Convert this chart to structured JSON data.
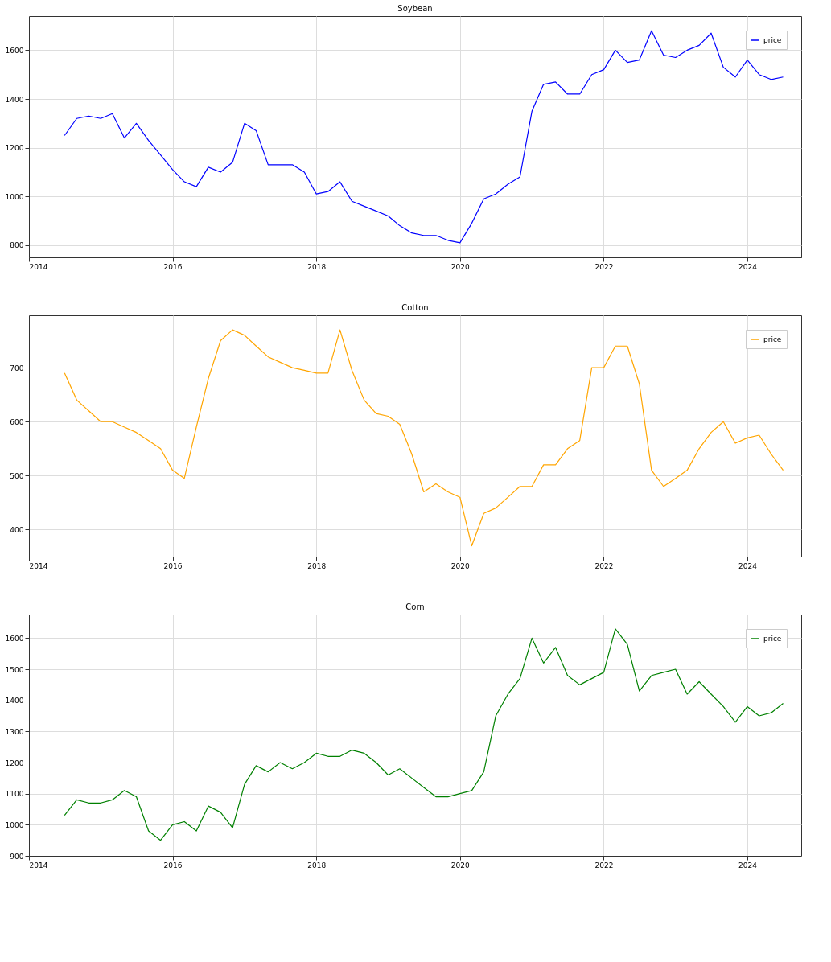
{
  "chart_data": [
    {
      "type": "line",
      "title": "Soybean",
      "x": [
        "2014-07",
        "2014-09",
        "2014-11",
        "2015-01",
        "2015-03",
        "2015-05",
        "2015-07",
        "2015-09",
        "2015-11",
        "2016-01",
        "2016-03",
        "2016-05",
        "2016-07",
        "2016-09",
        "2016-11",
        "2017-01",
        "2017-03",
        "2017-05",
        "2017-07",
        "2017-09",
        "2017-11",
        "2018-01",
        "2018-03",
        "2018-05",
        "2018-07",
        "2018-09",
        "2018-11",
        "2019-01",
        "2019-03",
        "2019-05",
        "2019-07",
        "2019-09",
        "2019-11",
        "2020-01",
        "2020-03",
        "2020-05",
        "2020-07",
        "2020-09",
        "2020-11",
        "2021-01",
        "2021-03",
        "2021-05",
        "2021-07",
        "2021-09",
        "2021-11",
        "2022-01",
        "2022-03",
        "2022-05",
        "2022-07",
        "2022-09",
        "2022-11",
        "2023-01",
        "2023-03",
        "2023-05",
        "2023-07",
        "2023-09",
        "2023-11",
        "2024-01",
        "2024-03",
        "2024-05",
        "2024-07"
      ],
      "series": [
        {
          "name": "price",
          "color": "#0000ff",
          "values": [
            1250,
            1320,
            1330,
            1320,
            1340,
            1240,
            1300,
            1230,
            1170,
            1110,
            1060,
            1040,
            1120,
            1100,
            1140,
            1300,
            1270,
            1130,
            1130,
            1130,
            1100,
            1010,
            1020,
            1060,
            980,
            960,
            940,
            920,
            880,
            850,
            840,
            840,
            820,
            810,
            890,
            990,
            1010,
            1050,
            1080,
            1350,
            1460,
            1470,
            1420,
            1420,
            1500,
            1520,
            1600,
            1550,
            1560,
            1680,
            1580,
            1570,
            1600,
            1620,
            1670,
            1530,
            1490,
            1560,
            1500,
            1480,
            1490
          ]
        }
      ],
      "xlim": [
        "2014",
        "2024-10"
      ],
      "xticks": [
        "2014",
        "2016",
        "2018",
        "2020",
        "2022",
        "2024"
      ],
      "ylim": [
        750,
        1740
      ],
      "yticks": [
        800,
        1000,
        1200,
        1400,
        1600
      ],
      "grid": true,
      "legend": "top right",
      "marker": "none",
      "line_style": "solid"
    },
    {
      "type": "line",
      "title": "Cotton",
      "x": [
        "2014-07",
        "2014-09",
        "2014-11",
        "2015-01",
        "2015-03",
        "2015-05",
        "2015-07",
        "2015-09",
        "2015-11",
        "2016-01",
        "2016-03",
        "2016-05",
        "2016-07",
        "2016-09",
        "2016-11",
        "2017-01",
        "2017-03",
        "2017-05",
        "2017-07",
        "2017-09",
        "2017-11",
        "2018-01",
        "2018-03",
        "2018-05",
        "2018-07",
        "2018-09",
        "2018-11",
        "2019-01",
        "2019-03",
        "2019-05",
        "2019-07",
        "2019-09",
        "2019-11",
        "2020-01",
        "2020-03",
        "2020-05",
        "2020-07",
        "2020-09",
        "2020-11",
        "2021-01",
        "2021-03",
        "2021-05",
        "2021-07",
        "2021-09",
        "2021-11",
        "2022-01",
        "2022-03",
        "2022-05",
        "2022-07",
        "2022-09",
        "2022-11",
        "2023-01",
        "2023-03",
        "2023-05",
        "2023-07",
        "2023-09",
        "2023-11",
        "2024-01",
        "2024-03",
        "2024-05",
        "2024-07"
      ],
      "series": [
        {
          "name": "price",
          "color": "#ffa500",
          "values": [
            690,
            640,
            620,
            600,
            600,
            590,
            580,
            565,
            550,
            510,
            495,
            590,
            680,
            750,
            770,
            760,
            740,
            720,
            710,
            700,
            695,
            690,
            690,
            770,
            695,
            640,
            615,
            610,
            595,
            540,
            470,
            485,
            470,
            460,
            370,
            430,
            440,
            460,
            480,
            480,
            520,
            520,
            550,
            565,
            700,
            700,
            740,
            740,
            670,
            510,
            480,
            495,
            510,
            550,
            580,
            600,
            560,
            570,
            575,
            540,
            510
          ]
        }
      ],
      "xlim": [
        "2014",
        "2024-10"
      ],
      "xticks": [
        "2014",
        "2016",
        "2018",
        "2020",
        "2022",
        "2024"
      ],
      "ylim": [
        350,
        797
      ],
      "yticks": [
        400,
        500,
        600,
        700
      ],
      "grid": true,
      "legend": "top right",
      "marker": "none",
      "line_style": "solid"
    },
    {
      "type": "line",
      "title": "Corn",
      "x": [
        "2014-07",
        "2014-09",
        "2014-11",
        "2015-01",
        "2015-03",
        "2015-05",
        "2015-07",
        "2015-09",
        "2015-11",
        "2016-01",
        "2016-03",
        "2016-05",
        "2016-07",
        "2016-09",
        "2016-11",
        "2017-01",
        "2017-03",
        "2017-05",
        "2017-07",
        "2017-09",
        "2017-11",
        "2018-01",
        "2018-03",
        "2018-05",
        "2018-07",
        "2018-09",
        "2018-11",
        "2019-01",
        "2019-03",
        "2019-05",
        "2019-07",
        "2019-09",
        "2019-11",
        "2020-01",
        "2020-03",
        "2020-05",
        "2020-07",
        "2020-09",
        "2020-11",
        "2021-01",
        "2021-03",
        "2021-05",
        "2021-07",
        "2021-09",
        "2021-11",
        "2022-01",
        "2022-03",
        "2022-05",
        "2022-07",
        "2022-09",
        "2022-11",
        "2023-01",
        "2023-03",
        "2023-05",
        "2023-07",
        "2023-09",
        "2023-11",
        "2024-01",
        "2024-03",
        "2024-05",
        "2024-07"
      ],
      "series": [
        {
          "name": "price",
          "color": "#008000",
          "values": [
            1030,
            1080,
            1070,
            1070,
            1080,
            1110,
            1090,
            980,
            950,
            1000,
            1010,
            980,
            1060,
            1040,
            990,
            1130,
            1190,
            1170,
            1200,
            1180,
            1200,
            1230,
            1220,
            1220,
            1240,
            1230,
            1200,
            1160,
            1180,
            1150,
            1120,
            1090,
            1090,
            1100,
            1110,
            1170,
            1350,
            1420,
            1470,
            1600,
            1520,
            1570,
            1480,
            1450,
            1470,
            1490,
            1630,
            1580,
            1430,
            1480,
            1490,
            1500,
            1420,
            1460,
            1420,
            1380,
            1330,
            1380,
            1350,
            1360,
            1390
          ]
        }
      ],
      "xlim": [
        "2014",
        "2024-10"
      ],
      "xticks": [
        "2014",
        "2016",
        "2018",
        "2020",
        "2022",
        "2024"
      ],
      "ylim": [
        900,
        1676
      ],
      "yticks": [
        900,
        1000,
        1100,
        1200,
        1300,
        1400,
        1500,
        1600
      ],
      "grid": true,
      "legend": "top right",
      "marker": "none",
      "line_style": "solid"
    }
  ]
}
